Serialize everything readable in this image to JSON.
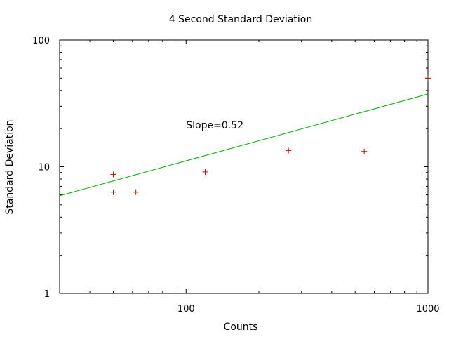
{
  "chart_data": {
    "type": "scatter",
    "title": "4 Second Standard Deviation",
    "xlabel": "Counts",
    "ylabel": "Standard Deviation",
    "x_scale": "log",
    "y_scale": "log",
    "xlim": [
      30,
      1000
    ],
    "ylim": [
      1,
      100
    ],
    "x_ticks": [
      100,
      1000
    ],
    "x_tick_labels": [
      "100",
      "1000"
    ],
    "y_ticks": [
      1,
      10,
      100
    ],
    "y_tick_labels": [
      "1",
      "10",
      "100"
    ],
    "grid": false,
    "points": {
      "marker": "+",
      "color": "#cc0000",
      "x": [
        50,
        50,
        62,
        120,
        265,
        545,
        1000
      ],
      "y": [
        8.7,
        6.3,
        6.3,
        9.1,
        13.4,
        13.2,
        50
      ]
    },
    "fit_line": {
      "color": "#00aa00",
      "x": [
        30,
        1000
      ],
      "y": [
        5.9,
        37.5
      ]
    },
    "annotations": [
      {
        "text": "Slope=0.52",
        "x": 100,
        "y": 20
      }
    ]
  }
}
